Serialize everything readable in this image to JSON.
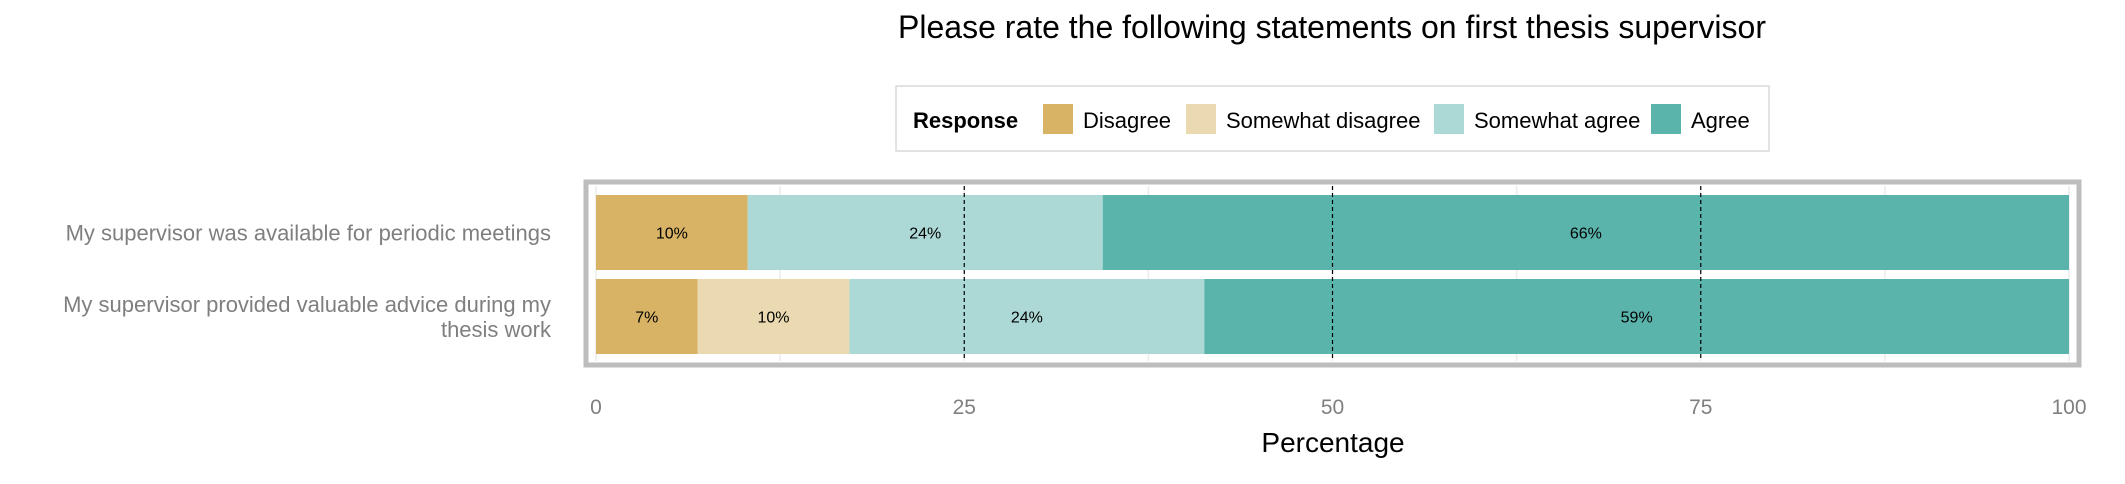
{
  "chart_data": {
    "type": "bar",
    "orientation": "horizontal",
    "stacked": true,
    "title": "Please rate the following statements on first thesis supervisor",
    "xlabel": "Percentage",
    "ylabel": "",
    "xlim": [
      0,
      100
    ],
    "xticks": [
      0,
      25,
      50,
      75,
      100
    ],
    "legend": {
      "title": "Response",
      "placement": "top",
      "entries": [
        "Disagree",
        "Somewhat disagree",
        "Somewhat agree",
        "Agree"
      ]
    },
    "categories": [
      [
        "My supervisor was available for periodic meetings"
      ],
      [
        "My supervisor provided valuable advice during my",
        "thesis work"
      ]
    ],
    "series": [
      {
        "name": "Disagree",
        "color": "#d8b365",
        "values": [
          10.3,
          6.9
        ],
        "labels": [
          "10%",
          "7%"
        ]
      },
      {
        "name": "Somewhat disagree",
        "color": "#ebd9b2",
        "values": [
          0,
          10.3
        ],
        "labels": [
          "",
          "10%"
        ]
      },
      {
        "name": "Somewhat agree",
        "color": "#acd9d5",
        "values": [
          24.1,
          24.1
        ],
        "labels": [
          "24%",
          "24%"
        ]
      },
      {
        "name": "Agree",
        "color": "#5ab4ac",
        "values": [
          65.6,
          58.7
        ],
        "labels": [
          "66%",
          "59%"
        ]
      }
    ],
    "reference_lines": [
      25,
      50,
      75
    ],
    "grid": true
  }
}
